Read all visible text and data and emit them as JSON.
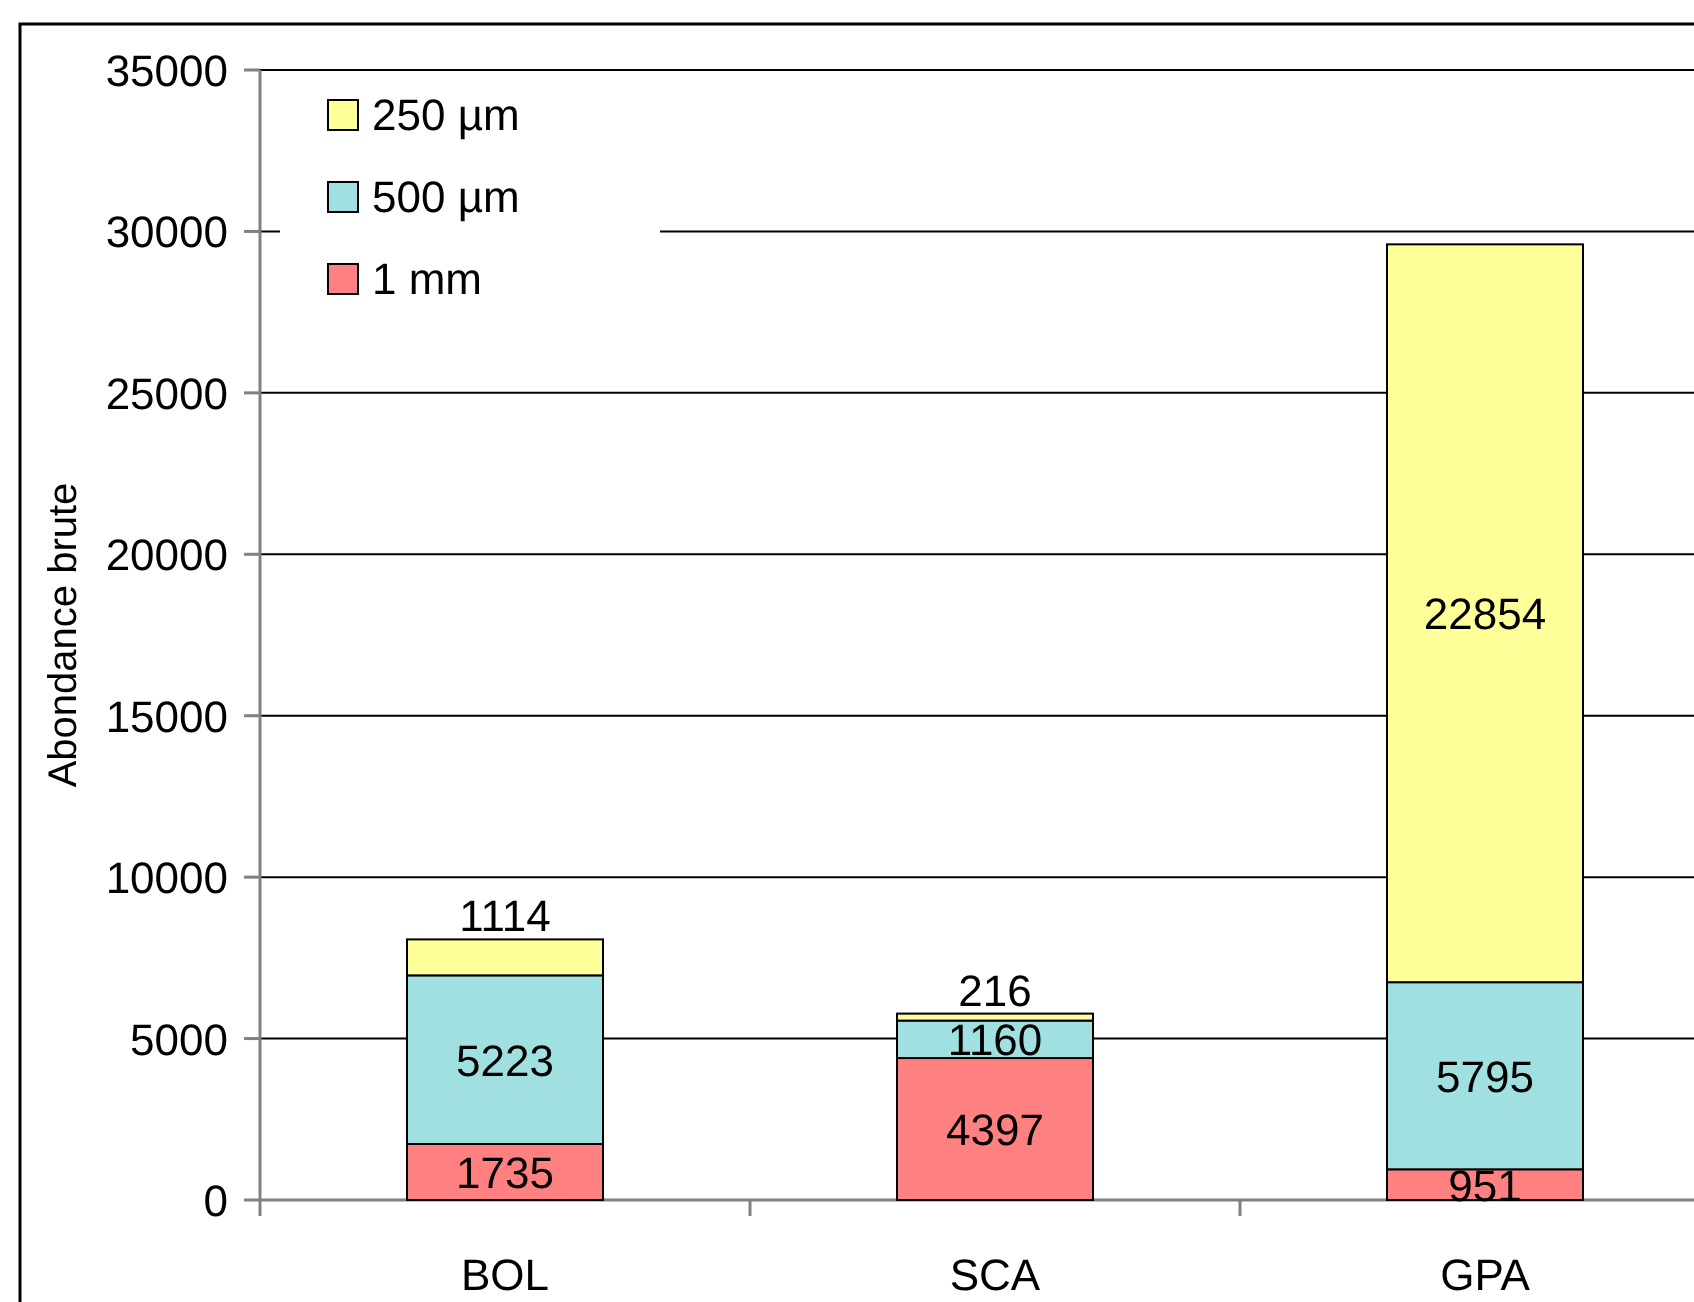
{
  "chart_data": {
    "type": "bar",
    "stacked": true,
    "ylabel": "Abondance brute",
    "categories": [
      "BOL",
      "SCA",
      "GPA"
    ],
    "series": [
      {
        "name": "1 mm",
        "color": "#ff8080",
        "values": [
          1735,
          4397,
          951
        ]
      },
      {
        "name": "500 µm",
        "color": "#a0e0e0",
        "values": [
          5223,
          1160,
          5795
        ]
      },
      {
        "name": "250 µm",
        "color": "#ffff99",
        "values": [
          1114,
          216,
          22854
        ]
      }
    ],
    "ylim": [
      0,
      35000
    ],
    "yticks": [
      0,
      5000,
      10000,
      15000,
      20000,
      25000,
      30000,
      35000
    ],
    "grid": "y",
    "legend": "top left",
    "data_labels": true
  }
}
